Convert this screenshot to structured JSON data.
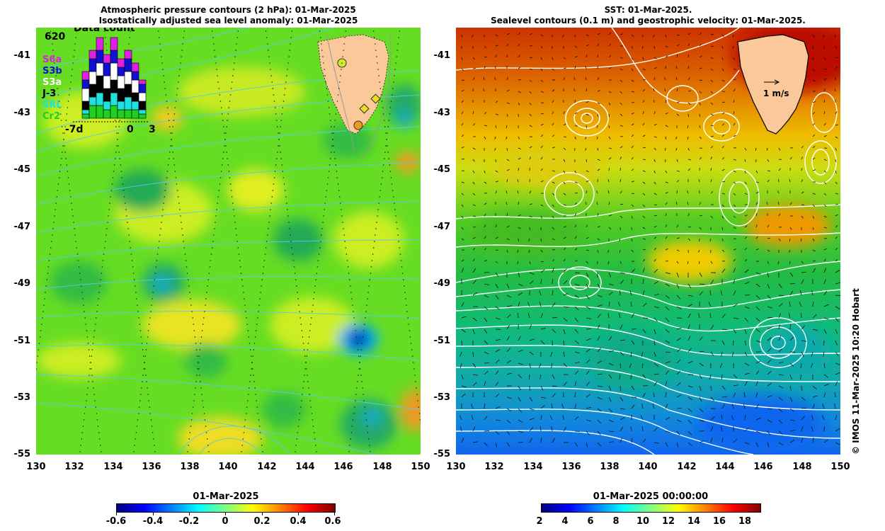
{
  "left_panel": {
    "title_line1": "Atmospheric pressure contours (2 hPa): 01-Mar-2025",
    "title_line2": "Isostatically adjusted sea level anomaly: 01-Mar-2025",
    "data_count": {
      "title": "Data count",
      "max_label": "620",
      "x_labels": [
        "-7d",
        "0",
        "3"
      ],
      "missions": [
        {
          "name": "S6a",
          "color": "#e020e0"
        },
        {
          "name": "S3b",
          "color": "#1010d0"
        },
        {
          "name": "S3a",
          "color": "#ffffff"
        },
        {
          "name": "J-3",
          "color": "#000000"
        },
        {
          "name": "SRL",
          "color": "#20e0e0"
        },
        {
          "name": "Cr2",
          "color": "#20d020"
        }
      ]
    },
    "colorbar": {
      "title": "01-Mar-2025",
      "ticks": [
        "-0.6",
        "-0.4",
        "-0.2",
        "0",
        "0.2",
        "0.4",
        "0.6"
      ],
      "colors": [
        "#000080",
        "#0000ff",
        "#0080ff",
        "#00ffff",
        "#80ff80",
        "#ffff00",
        "#ff8000",
        "#ff0000",
        "#800000"
      ]
    }
  },
  "right_panel": {
    "title_line1": "SST: 01-Mar-2025.",
    "title_line2": "Sealevel contours (0.1 m) and geostrophic velocity: 01-Mar-2025.",
    "scale_label": "1 m/s",
    "colorbar": {
      "title": "01-Mar-2025 00:00:00",
      "ticks": [
        "2",
        "4",
        "6",
        "8",
        "10",
        "12",
        "14",
        "16",
        "18"
      ],
      "colors": [
        "#000080",
        "#0000ff",
        "#0080ff",
        "#00ffff",
        "#80ff80",
        "#ffff00",
        "#ff8000",
        "#ff0000",
        "#800000"
      ]
    }
  },
  "axes": {
    "lat_labels": [
      "-41",
      "-43",
      "-45",
      "-47",
      "-49",
      "-51",
      "-53",
      "-55"
    ],
    "lon_labels": [
      "130",
      "132",
      "134",
      "136",
      "138",
      "140",
      "142",
      "144",
      "146",
      "148",
      "150"
    ]
  },
  "credit": "© IMOS 11-Mar-2025 10:20 Hobart"
}
